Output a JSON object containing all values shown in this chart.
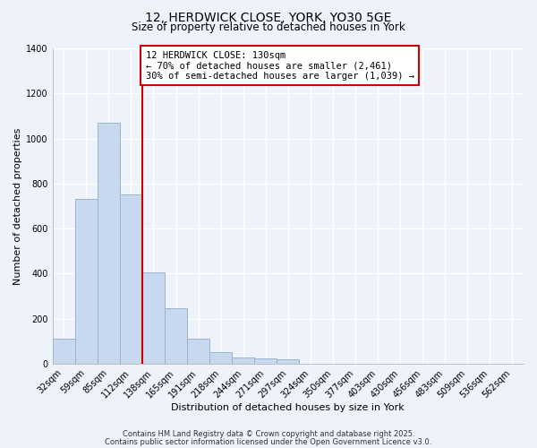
{
  "title_line1": "12, HERDWICK CLOSE, YORK, YO30 5GE",
  "title_line2": "Size of property relative to detached houses in York",
  "bar_labels": [
    "32sqm",
    "59sqm",
    "85sqm",
    "112sqm",
    "138sqm",
    "165sqm",
    "191sqm",
    "218sqm",
    "244sqm",
    "271sqm",
    "297sqm",
    "324sqm",
    "350sqm",
    "377sqm",
    "403sqm",
    "430sqm",
    "456sqm",
    "483sqm",
    "509sqm",
    "536sqm",
    "562sqm"
  ],
  "bar_values": [
    110,
    730,
    1070,
    750,
    405,
    245,
    112,
    50,
    28,
    25,
    20,
    0,
    0,
    0,
    0,
    0,
    0,
    0,
    0,
    0,
    0
  ],
  "bar_color": "#c8d8ee",
  "bar_edgecolor": "#9ab4d0",
  "vline_color": "#cc0000",
  "annotation_line1": "12 HERDWICK CLOSE: 130sqm",
  "annotation_line2": "← 70% of detached houses are smaller (2,461)",
  "annotation_line3": "30% of semi-detached houses are larger (1,039) →",
  "annotation_box_edgecolor": "#cc0000",
  "annotation_box_facecolor": "#ffffff",
  "xlabel": "Distribution of detached houses by size in York",
  "ylabel": "Number of detached properties",
  "ylim": [
    0,
    1400
  ],
  "yticks": [
    0,
    200,
    400,
    600,
    800,
    1000,
    1200,
    1400
  ],
  "footer_line1": "Contains HM Land Registry data © Crown copyright and database right 2025.",
  "footer_line2": "Contains public sector information licensed under the Open Government Licence v3.0.",
  "background_color": "#eef2fb",
  "grid_color": "#ffffff",
  "title_fontsize": 10,
  "subtitle_fontsize": 8.5,
  "axis_label_fontsize": 8,
  "tick_fontsize": 7,
  "annotation_fontsize": 7.5,
  "footer_fontsize": 6
}
